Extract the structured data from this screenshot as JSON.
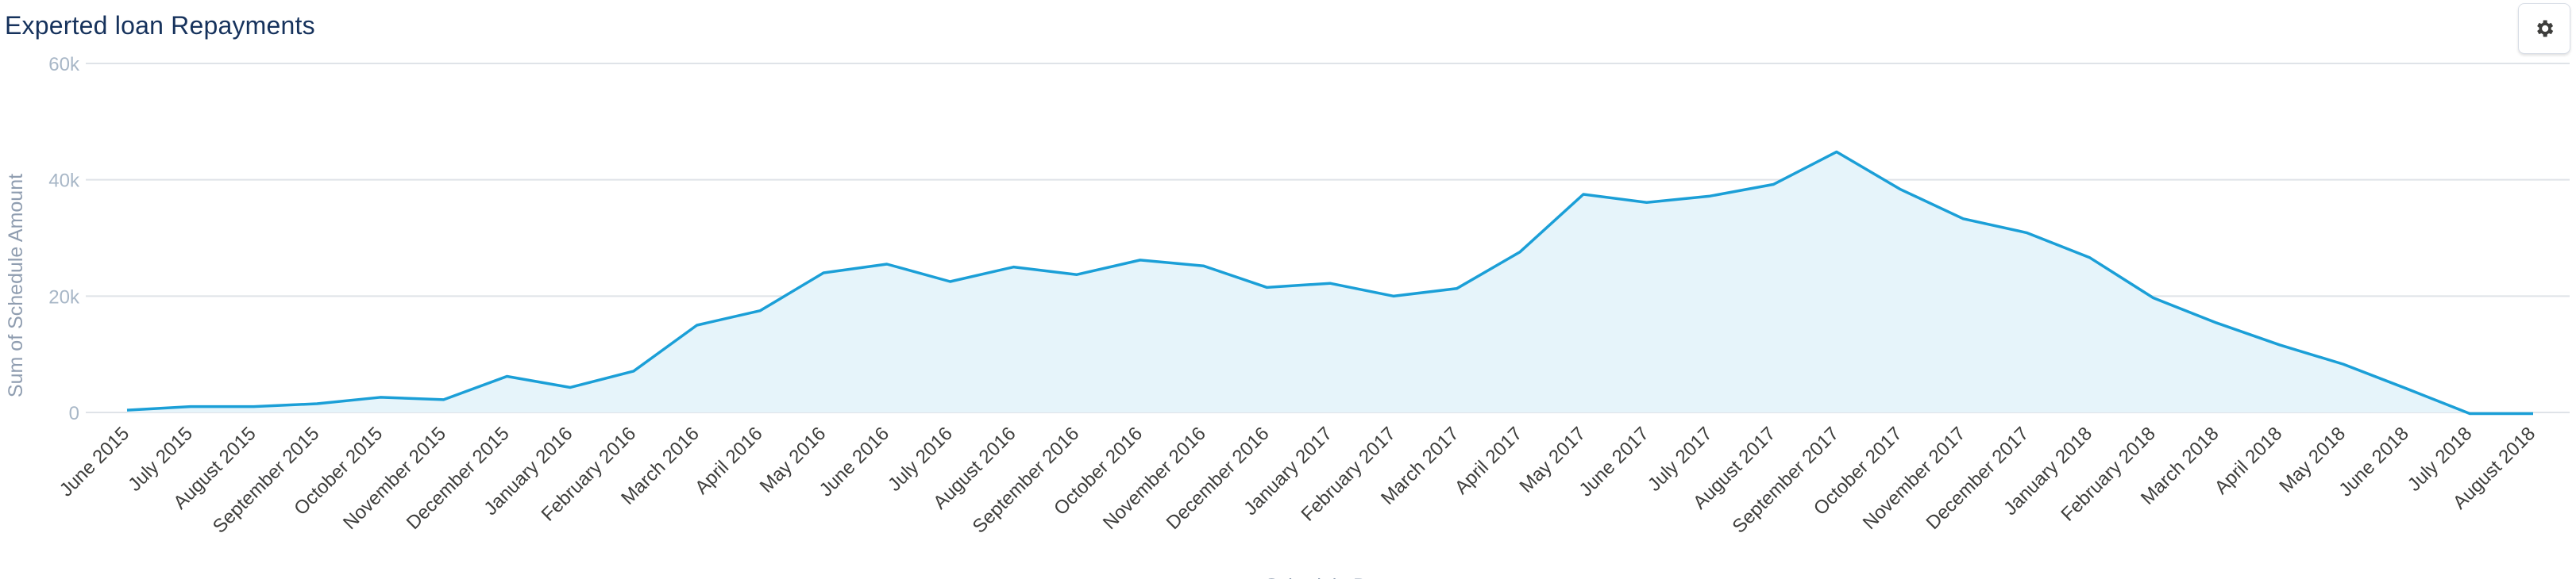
{
  "header": {
    "title": "Experted loan Repayments",
    "settings_icon": "gear-icon"
  },
  "colors": {
    "line": "#1b9fd7",
    "area": "#e6f4fa",
    "grid": "#dfe3e8",
    "title": "#16325c"
  },
  "chart_data": {
    "type": "area",
    "title": "Experted loan Repayments",
    "xlabel": "Schedule Date",
    "ylabel": "Sum of Schedule Amount",
    "ylim": [
      0,
      60000
    ],
    "yticks": [
      0,
      20000,
      40000,
      60000
    ],
    "ytick_labels": [
      "0",
      "20k",
      "40k",
      "60k"
    ],
    "grid": true,
    "categories": [
      "June 2015",
      "July 2015",
      "August 2015",
      "September 2015",
      "October 2015",
      "November 2015",
      "December 2015",
      "January 2016",
      "February 2016",
      "March 2016",
      "April 2016",
      "May 2016",
      "June 2016",
      "July 2016",
      "August 2016",
      "September 2016",
      "October 2016",
      "November 2016",
      "December 2016",
      "January 2017",
      "February 2017",
      "March 2017",
      "April 2017",
      "May 2017",
      "June 2017",
      "July 2017",
      "August 2017",
      "September 2017",
      "October 2017",
      "November 2017",
      "December 2017",
      "January 2018",
      "February 2018",
      "March 2018",
      "April 2018",
      "May 2018",
      "June 2018",
      "July 2018",
      "August 2018"
    ],
    "series": [
      {
        "values": [
          400,
          1000,
          1000,
          1500,
          2600,
          2200,
          6200,
          4300,
          7100,
          15000,
          17500,
          24000,
          25500,
          22500,
          25000,
          23700,
          26200,
          25200,
          21500,
          22200,
          20000,
          21300,
          27600,
          37500,
          36100,
          37200,
          39200,
          44800,
          38400,
          33300,
          30900,
          26600,
          19700,
          15400,
          11600,
          8300,
          4100,
          -200,
          -200
        ]
      }
    ]
  }
}
